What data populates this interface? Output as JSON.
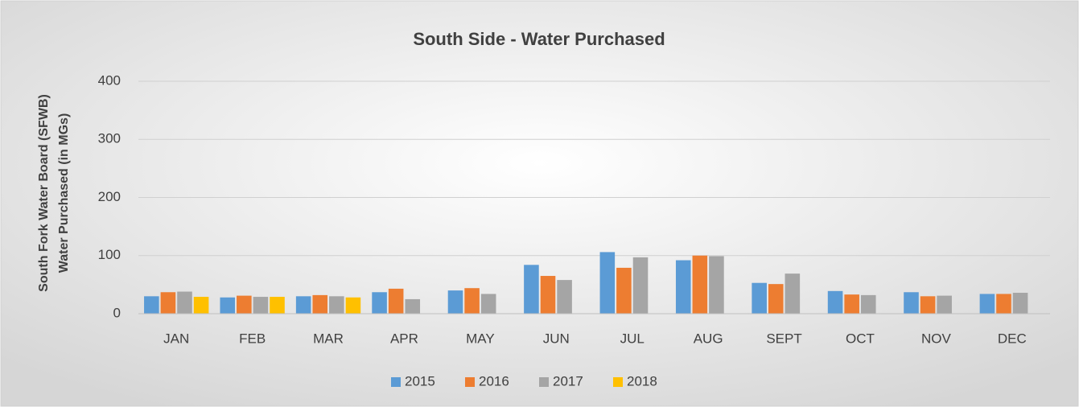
{
  "chart_data": {
    "type": "bar",
    "title": "South Side - Water Purchased",
    "ylabel": [
      "South Fork Water Board (SFWB)",
      "Water Purchased (in MGs)"
    ],
    "categories": [
      "JAN",
      "FEB",
      "MAR",
      "APR",
      "MAY",
      "JUN",
      "JUL",
      "AUG",
      "SEPT",
      "OCT",
      "NOV",
      "DEC"
    ],
    "series": [
      {
        "name": "2015",
        "color": "#5b9bd5",
        "values": [
          30,
          28,
          30,
          37,
          40,
          84,
          106,
          92,
          53,
          39,
          37,
          34
        ]
      },
      {
        "name": "2016",
        "color": "#ed7d31",
        "values": [
          37,
          31,
          32,
          43,
          44,
          65,
          79,
          100,
          51,
          33,
          30,
          34
        ]
      },
      {
        "name": "2017",
        "color": "#a5a5a5",
        "values": [
          38,
          29,
          30,
          25,
          34,
          58,
          97,
          99,
          69,
          32,
          31,
          36
        ]
      },
      {
        "name": "2018",
        "color": "#ffc000",
        "values": [
          29,
          29,
          28,
          null,
          null,
          null,
          null,
          null,
          null,
          null,
          null,
          null
        ]
      }
    ],
    "ylim": [
      0,
      400
    ],
    "yticks": [
      0,
      100,
      200,
      300,
      400
    ],
    "grid": true,
    "legend": "bottom"
  }
}
